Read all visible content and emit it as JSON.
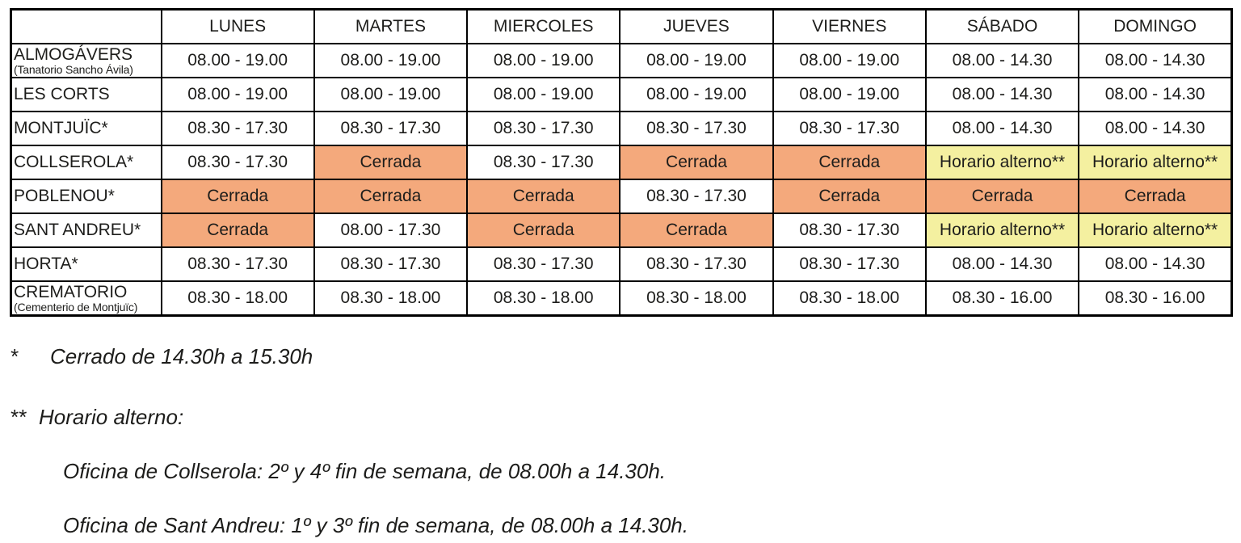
{
  "colors": {
    "closed_bg": "#F4A97C",
    "alternate_bg": "#F4F0A0",
    "border": "#000000",
    "text": "#1D1D1B"
  },
  "table": {
    "columns": [
      "",
      "LUNES",
      "MARTES",
      "MIERCOLES",
      "JUEVES",
      "VIERNES",
      "SÁBADO",
      "DOMINGO"
    ],
    "rows": [
      {
        "name": "ALMOGÁVERS",
        "subtitle": "(Tanatorio Sancho Ávila)",
        "cells": [
          {
            "text": "08.00 - 19.00",
            "type": "open"
          },
          {
            "text": "08.00 - 19.00",
            "type": "open"
          },
          {
            "text": "08.00 - 19.00",
            "type": "open"
          },
          {
            "text": "08.00 - 19.00",
            "type": "open"
          },
          {
            "text": "08.00 - 19.00",
            "type": "open"
          },
          {
            "text": "08.00 - 14.30",
            "type": "open"
          },
          {
            "text": "08.00 - 14.30",
            "type": "open"
          }
        ]
      },
      {
        "name": "LES CORTS",
        "subtitle": "",
        "cells": [
          {
            "text": "08.00 - 19.00",
            "type": "open"
          },
          {
            "text": "08.00 - 19.00",
            "type": "open"
          },
          {
            "text": "08.00 - 19.00",
            "type": "open"
          },
          {
            "text": "08.00 - 19.00",
            "type": "open"
          },
          {
            "text": "08.00 - 19.00",
            "type": "open"
          },
          {
            "text": "08.00 - 14.30",
            "type": "open"
          },
          {
            "text": "08.00 - 14.30",
            "type": "open"
          }
        ]
      },
      {
        "name": "MONTJUÏC*",
        "subtitle": "",
        "cells": [
          {
            "text": "08.30 - 17.30",
            "type": "open"
          },
          {
            "text": "08.30 - 17.30",
            "type": "open"
          },
          {
            "text": "08.30 - 17.30",
            "type": "open"
          },
          {
            "text": "08.30 - 17.30",
            "type": "open"
          },
          {
            "text": "08.30 - 17.30",
            "type": "open"
          },
          {
            "text": "08.00 - 14.30",
            "type": "open"
          },
          {
            "text": "08.00 - 14.30",
            "type": "open"
          }
        ]
      },
      {
        "name": "COLLSEROLA*",
        "subtitle": "",
        "cells": [
          {
            "text": "08.30 - 17.30",
            "type": "open"
          },
          {
            "text": "Cerrada",
            "type": "closed"
          },
          {
            "text": "08.30 - 17.30",
            "type": "open"
          },
          {
            "text": "Cerrada",
            "type": "closed"
          },
          {
            "text": "Cerrada",
            "type": "closed"
          },
          {
            "text": "Horario alterno**",
            "type": "alternate"
          },
          {
            "text": "Horario alterno**",
            "type": "alternate"
          }
        ]
      },
      {
        "name": "POBLENOU*",
        "subtitle": "",
        "cells": [
          {
            "text": "Cerrada",
            "type": "closed"
          },
          {
            "text": "Cerrada",
            "type": "closed"
          },
          {
            "text": "Cerrada",
            "type": "closed"
          },
          {
            "text": "08.30 - 17.30",
            "type": "open"
          },
          {
            "text": "Cerrada",
            "type": "closed"
          },
          {
            "text": "Cerrada",
            "type": "closed"
          },
          {
            "text": "Cerrada",
            "type": "closed"
          }
        ]
      },
      {
        "name": "SANT ANDREU*",
        "subtitle": "",
        "cells": [
          {
            "text": "Cerrada",
            "type": "closed"
          },
          {
            "text": "08.00 - 17.30",
            "type": "open"
          },
          {
            "text": "Cerrada",
            "type": "closed"
          },
          {
            "text": "Cerrada",
            "type": "closed"
          },
          {
            "text": "08.30 - 17.30",
            "type": "open"
          },
          {
            "text": "Horario alterno**",
            "type": "alternate"
          },
          {
            "text": "Horario alterno**",
            "type": "alternate"
          }
        ]
      },
      {
        "name": "HORTA*",
        "subtitle": "",
        "cells": [
          {
            "text": "08.30 - 17.30",
            "type": "open"
          },
          {
            "text": "08.30 - 17.30",
            "type": "open"
          },
          {
            "text": "08.30 - 17.30",
            "type": "open"
          },
          {
            "text": "08.30 - 17.30",
            "type": "open"
          },
          {
            "text": "08.30 - 17.30",
            "type": "open"
          },
          {
            "text": "08.00 - 14.30",
            "type": "open"
          },
          {
            "text": "08.00 - 14.30",
            "type": "open"
          }
        ]
      },
      {
        "name": "CREMATORIO",
        "subtitle": "(Cementerio de Montjuïc)",
        "cells": [
          {
            "text": "08.30 - 18.00",
            "type": "open"
          },
          {
            "text": "08.30 - 18.00",
            "type": "open"
          },
          {
            "text": "08.30 - 18.00",
            "type": "open"
          },
          {
            "text": "08.30 - 18.00",
            "type": "open"
          },
          {
            "text": "08.30 - 18.00",
            "type": "open"
          },
          {
            "text": "08.30 - 16.00",
            "type": "open"
          },
          {
            "text": "08.30 - 16.00",
            "type": "open"
          }
        ]
      }
    ]
  },
  "footnotes": {
    "closed_note_marker": "*",
    "closed_note_text": "Cerrado de 14.30h a 15.30h",
    "alternate_note_marker": "**",
    "alternate_note_text": "Horario alterno:",
    "alternate_detail_collserola": "Oficina de Collserola: 2º y 4º fin de semana, de 08.00h a 14.30h.",
    "alternate_detail_sant_andreu": "Oficina de Sant Andreu: 1º y 3º fin de semana, de 08.00h a 14.30h."
  }
}
